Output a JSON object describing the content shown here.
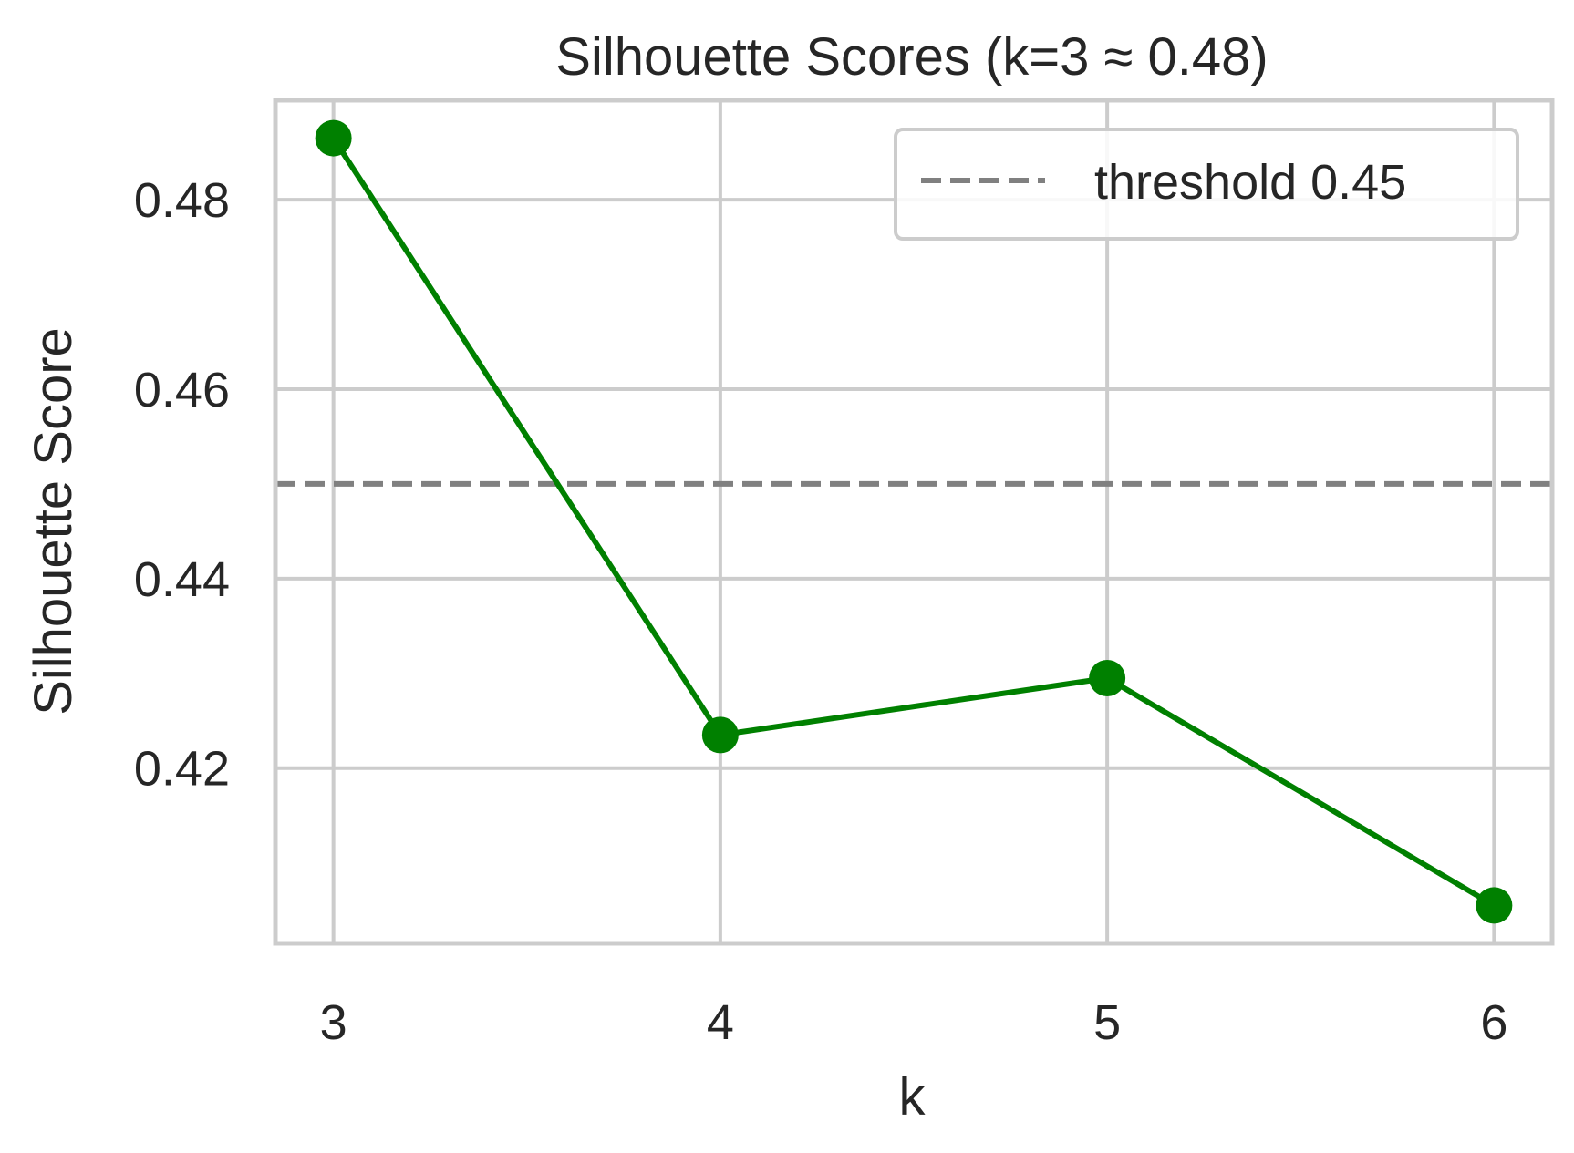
{
  "chart_data": {
    "type": "line",
    "title": "Silhouette Scores (k=3 ≈ 0.48)",
    "xlabel": "k",
    "ylabel": "Silhouette Score",
    "x": [
      3,
      4,
      5,
      6
    ],
    "xlim": [
      2.85,
      6.15
    ],
    "ylim": [
      0.4015,
      0.4905
    ],
    "xticks": [
      3,
      4,
      5,
      6
    ],
    "xtick_labels": [
      "3",
      "4",
      "5",
      "6"
    ],
    "yticks": [
      0.42,
      0.44,
      0.46,
      0.48
    ],
    "ytick_labels": [
      "0.42",
      "0.44",
      "0.46",
      "0.48"
    ],
    "grid": true,
    "series": [
      {
        "values": [
          0.4865,
          0.4235,
          0.4295,
          0.4055
        ],
        "color": "#008000",
        "marker": "circle"
      }
    ],
    "reference_lines": [
      {
        "orientation": "horizontal",
        "value": 0.45,
        "label": "threshold 0.45",
        "color": "#808080",
        "style": "dashed"
      }
    ],
    "legend": {
      "placement": "top-right",
      "entries": [
        "threshold 0.45"
      ]
    }
  }
}
